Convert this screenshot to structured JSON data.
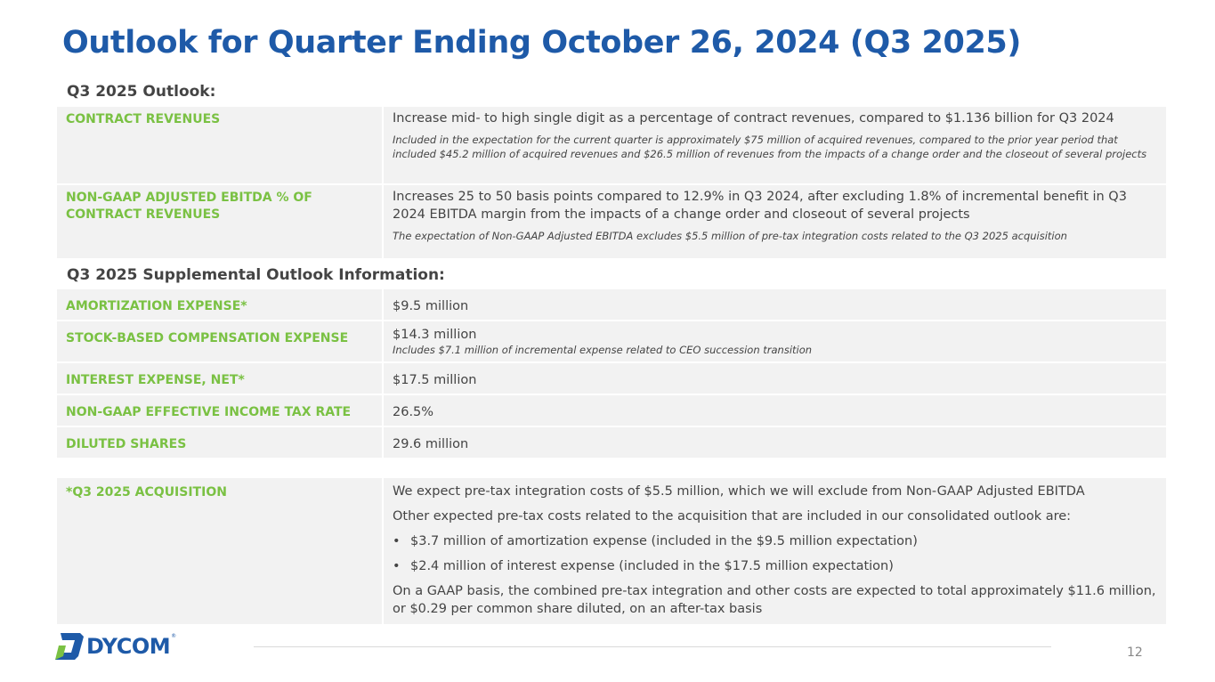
{
  "title": "Outlook for Quarter Ending October 26, 2024 (Q3 2025)",
  "outlook": {
    "heading": "Q3 2025 Outlook:",
    "contract_revenues": {
      "label": "CONTRACT REVENUES",
      "value": "Increase mid- to high single digit as a percentage of contract revenues, compared to $1.136 billion for Q3 2024",
      "note": "Included in the expectation for the current quarter is approximately $75 million of acquired revenues, compared to the prior year period that included $45.2 million of acquired revenues and $26.5 million of revenues from the impacts of a change order and the closeout of several projects"
    },
    "ebitda": {
      "label": "NON-GAAP ADJUSTED EBITDA % OF CONTRACT REVENUES",
      "value": "Increases 25 to 50 basis points compared to 12.9% in Q3 2024, after excluding 1.8% of incremental benefit in Q3 2024 EBITDA margin from the impacts of a change order and closeout of several projects",
      "note": "The expectation of Non-GAAP Adjusted EBITDA excludes $5.5 million of pre-tax integration costs related to the Q3 2025 acquisition"
    }
  },
  "supplemental": {
    "heading": "Q3 2025 Supplemental Outlook Information:",
    "amortization": {
      "label": "AMORTIZATION EXPENSE*",
      "value": "$9.5 million"
    },
    "stock_comp": {
      "label": "STOCK-BASED COMPENSATION EXPENSE",
      "value": "$14.3 million",
      "note": "Includes $7.1 million of incremental expense related to CEO succession transition"
    },
    "interest": {
      "label": "INTEREST EXPENSE, NET*",
      "value": "$17.5 million"
    },
    "tax_rate": {
      "label": "NON-GAAP EFFECTIVE INCOME TAX RATE",
      "value": "26.5%"
    },
    "diluted_shares": {
      "label": "DILUTED SHARES",
      "value": "29.6 million"
    }
  },
  "acquisition": {
    "label": "*Q3 2025 ACQUISITION",
    "line1": "We expect pre-tax integration costs of $5.5 million, which we will exclude from Non-GAAP Adjusted EBITDA",
    "line2": "Other expected pre-tax costs related to the acquisition that are included in our consolidated outlook are:",
    "bullet_char": "•",
    "bullets": [
      "$3.7 million of amortization expense (included in the $9.5 million expectation)",
      "$2.4 million of interest expense (included in the $17.5 million expectation)"
    ],
    "line3": "On a GAAP basis, the combined pre-tax integration and other costs are expected to total approximately $11.6 million, or $0.29 per common share diluted, on an after-tax basis"
  },
  "footer": {
    "logo_text": "DYCOM",
    "logo_tm": "®",
    "page_number": "12"
  },
  "colors": {
    "title": "#1e5aa8",
    "label": "#7ac143",
    "row_bg": "#f2f2f2"
  }
}
